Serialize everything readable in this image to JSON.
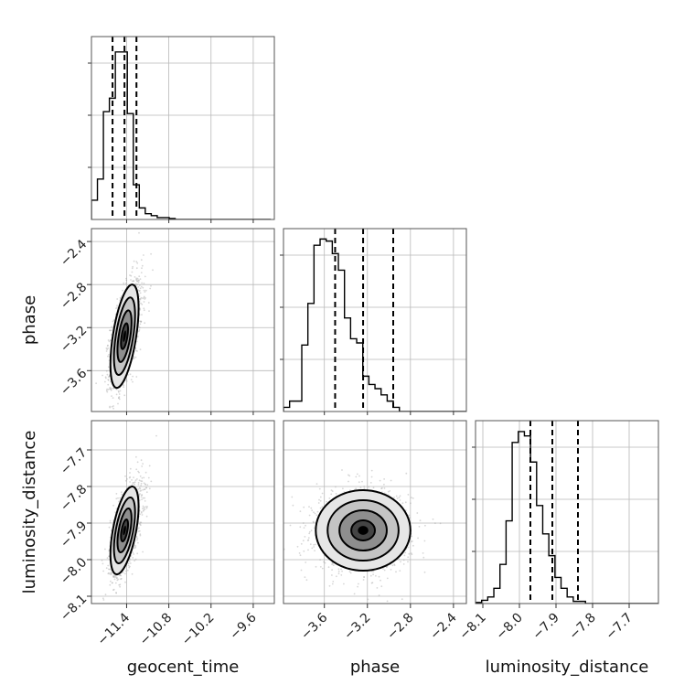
{
  "chart_data": {
    "type": "corner",
    "parameters": [
      {
        "name": "geocent_time",
        "range": [
          -11.9,
          -9.3
        ],
        "ticks": [
          -11.4,
          -10.8,
          -10.2,
          -9.6
        ],
        "tick_labels": [
          "−11.4",
          "−10.8",
          "−10.2",
          "−9.6"
        ],
        "quantiles": [
          -11.6,
          -11.43,
          -11.26
        ],
        "hist_bin_start": -11.9,
        "hist_bin_width": 0.085,
        "hist_counts": [
          10,
          21,
          56,
          63,
          87,
          87,
          55,
          18,
          6,
          3,
          2,
          1,
          1,
          0.5,
          0,
          0,
          0,
          0,
          0,
          0,
          0,
          0,
          0,
          0,
          0,
          0,
          0,
          0,
          0,
          0
        ],
        "hist_ymax": 95
      },
      {
        "name": "phase",
        "range": [
          -3.98,
          -2.28
        ],
        "ticks": [
          -3.6,
          -3.2,
          -2.8,
          -2.4
        ],
        "tick_labels": [
          "−3.6",
          "−3.2",
          "−2.8",
          "−2.4"
        ],
        "quantiles": [
          -3.5,
          -3.24,
          -2.96
        ],
        "hist_bin_start": -3.98,
        "hist_bin_width": 0.0567,
        "hist_counts": [
          2,
          5,
          5,
          32,
          52,
          80,
          83,
          82,
          76,
          68,
          45,
          35,
          33,
          17,
          13,
          11,
          8,
          5,
          2,
          0,
          0,
          0,
          0,
          0,
          0,
          0,
          0,
          0,
          0,
          0
        ],
        "hist_ymax": 88
      },
      {
        "name": "luminosity_distance",
        "range": [
          -8.12,
          -7.62
        ],
        "ticks": [
          -8.1,
          -8.0,
          -7.9,
          -7.8,
          -7.7
        ],
        "tick_labels": [
          "−8.1",
          "−8.0",
          "−7.9",
          "−7.8",
          "−7.7"
        ],
        "quantiles": [
          -7.97,
          -7.91,
          -7.84
        ],
        "hist_bin_start": -8.12,
        "hist_bin_width": 0.0167,
        "hist_counts": [
          0.5,
          1.5,
          3,
          7,
          18,
          38,
          74,
          79,
          77,
          65,
          45,
          32,
          22,
          12,
          7,
          3,
          1,
          1,
          0,
          0,
          0,
          0,
          0,
          0,
          0,
          0,
          0,
          0,
          0,
          0
        ],
        "hist_ymax": 84
      }
    ],
    "correlations": [
      {
        "pair": [
          "geocent_time",
          "phase"
        ],
        "mean": [
          -11.43,
          -3.28
        ],
        "sd": [
          0.1,
          0.24
        ],
        "rho": 0.55
      },
      {
        "pair": [
          "geocent_time",
          "luminosity_distance"
        ],
        "mean": [
          -11.43,
          -7.92
        ],
        "sd": [
          0.1,
          0.06
        ],
        "rho": 0.55
      },
      {
        "pair": [
          "phase",
          "luminosity_distance"
        ],
        "mean": [
          -3.24,
          -7.92
        ],
        "sd": [
          0.22,
          0.055
        ],
        "rho": 0.0
      }
    ],
    "contour_levels_sigma": [
      0.5,
      1.0,
      1.5,
      2.0
    ],
    "grid": true
  }
}
